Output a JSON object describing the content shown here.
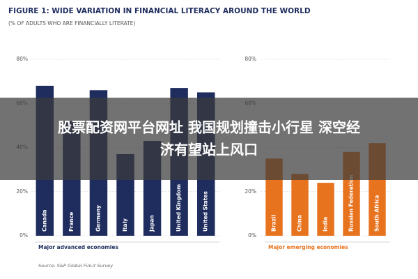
{
  "header": {
    "title": "FIGURE 1: WIDE VARIATION IN FINANCIAL LITERACY AROUND THE WORLD",
    "subtitle": "(% OF ADULTS WHO ARE FINANCIALLY LITERATE)"
  },
  "chart_data": [
    {
      "type": "bar",
      "xlabel": "Major advanced economies",
      "categories": [
        "Canada",
        "France",
        "Germany",
        "Italy",
        "Japan",
        "United Kingdom",
        "United States"
      ],
      "values": [
        68,
        52,
        66,
        37,
        43,
        67,
        65
      ],
      "color": "#1f2d5e",
      "ylim": [
        0,
        80
      ],
      "yticks": [
        {
          "value": 0,
          "label": "0%"
        },
        {
          "value": 20,
          "label": "20%"
        },
        {
          "value": 40,
          "label": "40%"
        },
        {
          "value": 60,
          "label": "60%"
        },
        {
          "value": 80,
          "label": "80%"
        }
      ],
      "grid": true
    },
    {
      "type": "bar",
      "xlabel": "Major emerging economies",
      "categories": [
        "Brazil",
        "China",
        "India",
        "Russian Federation",
        "South Africa"
      ],
      "values": [
        35,
        28,
        24,
        38,
        42
      ],
      "color": "#e8731f",
      "ylim": [
        0,
        80
      ],
      "yticks": [
        {
          "value": 0,
          "label": "0%"
        },
        {
          "value": 20,
          "label": "20%"
        },
        {
          "value": 40,
          "label": "40%"
        },
        {
          "value": 60,
          "label": "60%"
        },
        {
          "value": 80,
          "label": "80%"
        }
      ],
      "grid": true
    }
  ],
  "source": "Source: S&P Global FinLit Survey",
  "banner": {
    "line1": "股票配资网平台网址 我国规划撞击小行星 深空经",
    "line2": "济有望站上风口"
  }
}
